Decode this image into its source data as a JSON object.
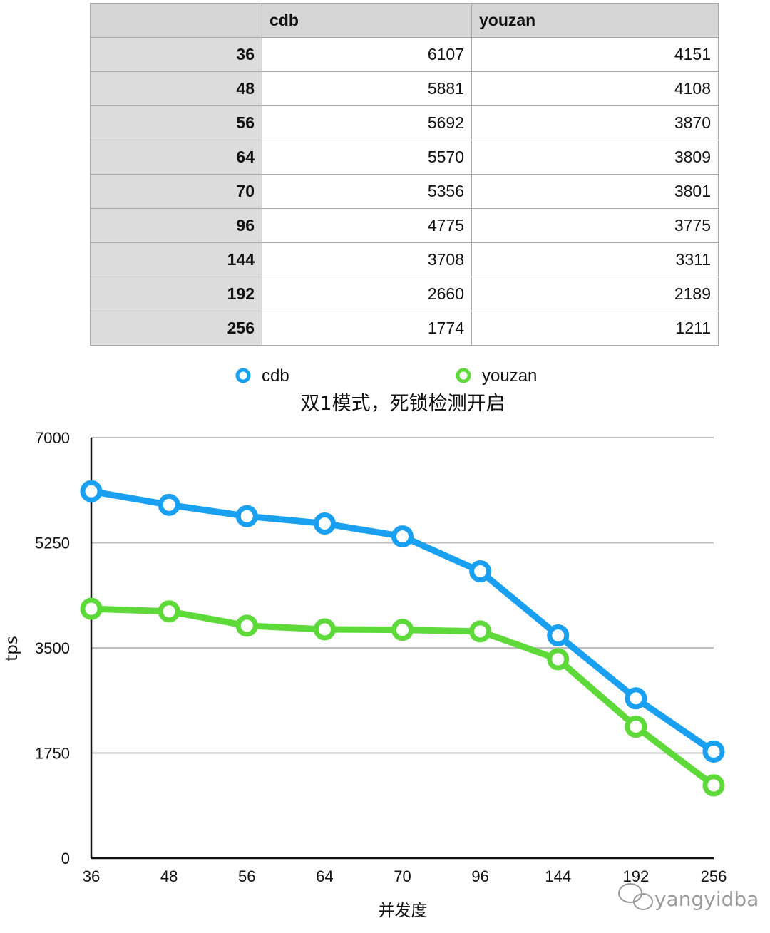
{
  "table": {
    "columns": [
      "",
      "cdb",
      "youzan"
    ],
    "rows": [
      {
        "label": "36",
        "cdb": "6107",
        "youzan": "4151"
      },
      {
        "label": "48",
        "cdb": "5881",
        "youzan": "4108"
      },
      {
        "label": "56",
        "cdb": "5692",
        "youzan": "3870"
      },
      {
        "label": "64",
        "cdb": "5570",
        "youzan": "3809"
      },
      {
        "label": "70",
        "cdb": "5356",
        "youzan": "3801"
      },
      {
        "label": "96",
        "cdb": "4775",
        "youzan": "3775"
      },
      {
        "label": "144",
        "cdb": "3708",
        "youzan": "3311"
      },
      {
        "label": "192",
        "cdb": "2660",
        "youzan": "2189"
      },
      {
        "label": "256",
        "cdb": "1774",
        "youzan": "1211"
      }
    ]
  },
  "chart_data": {
    "type": "line",
    "title": "双1模式，死锁检测开启",
    "xlabel": "并发度",
    "ylabel": "tps",
    "categories": [
      "36",
      "48",
      "56",
      "64",
      "70",
      "96",
      "144",
      "192",
      "256"
    ],
    "series": [
      {
        "name": "cdb",
        "color": "#1aa0f0",
        "values": [
          6107,
          5881,
          5692,
          5570,
          5356,
          4775,
          3708,
          2660,
          1774
        ]
      },
      {
        "name": "youzan",
        "color": "#5dd93a",
        "values": [
          4151,
          4108,
          3870,
          3809,
          3801,
          3775,
          3311,
          2189,
          1211
        ]
      }
    ],
    "ylim": [
      0,
      7000
    ],
    "yticks": [
      0,
      1750,
      3500,
      5250,
      7000
    ],
    "grid": true,
    "legend_position": "top"
  },
  "watermark": {
    "icon": "wechat-icon",
    "text": "yangyidba"
  }
}
